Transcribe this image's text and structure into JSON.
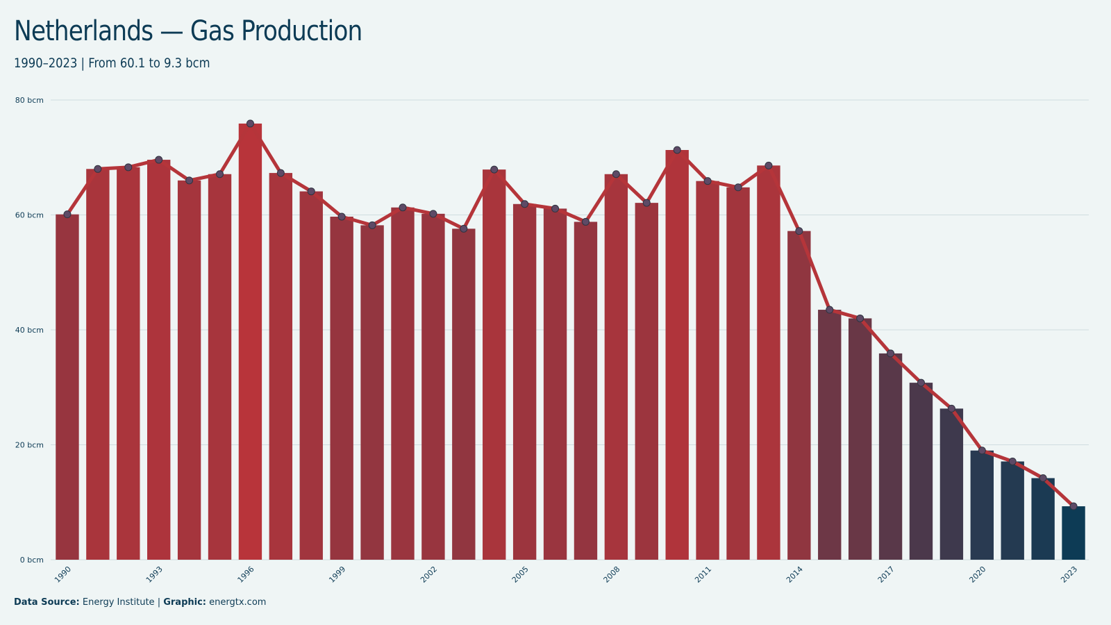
{
  "header": {
    "title": "Netherlands — Gas Production",
    "subtitle": "1990–2023 | From 60.1 to 9.3 bcm"
  },
  "footer": {
    "source_label": "Data Source:",
    "source_value": "Energy Institute",
    "separator": "|",
    "graphic_label": "Graphic:",
    "graphic_value": "energtx.com"
  },
  "colors": {
    "background": "#eff5f5",
    "line": "#b5353a",
    "high": "#b8343a",
    "low": "#0d3b55",
    "grid": "#cfdde0",
    "text": "#0d3b55"
  },
  "chart_data": {
    "type": "bar",
    "unit": "bcm",
    "ylim": [
      0,
      80
    ],
    "y_ticks": [
      0,
      20,
      40,
      60,
      80
    ],
    "y_tick_labels": [
      "0 bcm",
      "20 bcm",
      "40 bcm",
      "60 bcm",
      "80 bcm"
    ],
    "x_tick_labels": [
      "1990",
      "1993",
      "1996",
      "1999",
      "2002",
      "2005",
      "2008",
      "2011",
      "2014",
      "2017",
      "2020",
      "2023"
    ],
    "grid": true,
    "overlay_line": true,
    "categories": [
      "1990",
      "1991",
      "1992",
      "1993",
      "1994",
      "1995",
      "1996",
      "1997",
      "1998",
      "1999",
      "2000",
      "2001",
      "2002",
      "2003",
      "2004",
      "2005",
      "2006",
      "2007",
      "2008",
      "2009",
      "2010",
      "2011",
      "2012",
      "2013",
      "2014",
      "2015",
      "2016",
      "2017",
      "2018",
      "2019",
      "2020",
      "2021",
      "2022",
      "2023"
    ],
    "values": [
      60.1,
      68.0,
      68.3,
      69.6,
      66.0,
      67.1,
      75.9,
      67.3,
      64.1,
      59.7,
      58.2,
      61.3,
      60.2,
      57.6,
      67.9,
      61.9,
      61.1,
      58.8,
      67.1,
      62.1,
      71.3,
      65.9,
      64.8,
      68.6,
      57.2,
      43.5,
      42.0,
      35.9,
      30.8,
      26.3,
      19.0,
      17.1,
      14.2,
      9.3
    ]
  }
}
